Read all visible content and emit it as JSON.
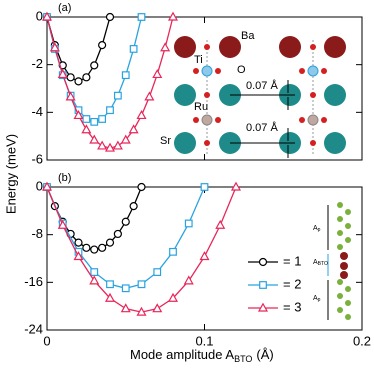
{
  "figure": {
    "ylabel": "Energy (meV)",
    "xlabel": [
      "Mode amplitude A",
      "BTO",
      "(Å)"
    ]
  },
  "chart_data": [
    {
      "type": "line",
      "panel_label": "(a)",
      "show_xticklabels": false,
      "xlim": [
        0,
        0.2
      ],
      "xticks": [
        0,
        0.1,
        0.2
      ],
      "ylim": [
        -6,
        0
      ],
      "yticks": [
        0,
        -2,
        -4,
        -6
      ],
      "series": [
        {
          "color": "#000000",
          "marker": "o",
          "x": [
            0,
            0.005,
            0.01,
            0.015,
            0.02,
            0.025,
            0.03,
            0.035,
            0.04
          ],
          "values": [
            0,
            -1.18,
            -2.03,
            -2.53,
            -2.7,
            -2.53,
            -2.03,
            -1.18,
            0
          ]
        },
        {
          "color": "#29a3e0",
          "marker": "s",
          "x": [
            0,
            0.005,
            0.01,
            0.015,
            0.02,
            0.025,
            0.03,
            0.035,
            0.04,
            0.045,
            0.05,
            0.055,
            0.06
          ],
          "values": [
            0,
            -1.34,
            -2.44,
            -3.3,
            -3.91,
            -4.28,
            -4.4,
            -4.28,
            -3.91,
            -3.3,
            -2.44,
            -1.34,
            0
          ]
        },
        {
          "color": "#e8265a",
          "marker": "^",
          "x": [
            0,
            0.005,
            0.01,
            0.015,
            0.02,
            0.025,
            0.03,
            0.035,
            0.04,
            0.045,
            0.05,
            0.055,
            0.06,
            0.065,
            0.07,
            0.075,
            0.08
          ],
          "values": [
            0,
            -1.29,
            -2.41,
            -3.35,
            -4.13,
            -4.73,
            -5.16,
            -5.41,
            -5.5,
            -5.41,
            -5.16,
            -4.73,
            -4.13,
            -3.35,
            -2.41,
            -1.29,
            0
          ]
        }
      ],
      "inset": {
        "labels": [
          "Ba",
          "Ti",
          "O",
          "Ru",
          "Sr",
          "0.07 Å",
          "0.07 Å"
        ]
      }
    },
    {
      "type": "line",
      "panel_label": "(b)",
      "show_xticklabels": true,
      "xlim": [
        0,
        0.2
      ],
      "xticks": [
        0,
        0.1,
        0.2
      ],
      "ylim": [
        -24,
        0
      ],
      "yticks": [
        0,
        -8,
        -16,
        -24
      ],
      "series": [
        {
          "name": "= 1",
          "color": "#000000",
          "marker": "o",
          "x": [
            0,
            0.005,
            0.01,
            0.015,
            0.02,
            0.025,
            0.03,
            0.035,
            0.04,
            0.045,
            0.05,
            0.055,
            0.06
          ],
          "values": [
            0,
            -3.21,
            -5.83,
            -7.88,
            -9.33,
            -10.21,
            -10.5,
            -10.21,
            -9.33,
            -7.88,
            -5.83,
            -3.21,
            0
          ]
        },
        {
          "name": "= 2",
          "color": "#29a3e0",
          "marker": "s",
          "x": [
            0,
            0.01,
            0.02,
            0.03,
            0.04,
            0.05,
            0.06,
            0.07,
            0.08,
            0.09,
            0.1
          ],
          "values": [
            0,
            -6.12,
            -10.88,
            -14.28,
            -16.32,
            -17,
            -16.32,
            -14.28,
            -10.88,
            -6.12,
            0
          ]
        },
        {
          "name": "= 3",
          "color": "#e8265a",
          "marker": "^",
          "x": [
            0,
            0.01,
            0.02,
            0.03,
            0.04,
            0.05,
            0.06,
            0.07,
            0.08,
            0.09,
            0.1,
            0.11,
            0.12
          ],
          "values": [
            0,
            -6.42,
            -11.67,
            -15.75,
            -18.67,
            -20.42,
            -21,
            -20.42,
            -18.67,
            -15.75,
            -11.67,
            -6.42,
            0
          ]
        }
      ],
      "inset": {
        "labels": [
          [
            "A",
            "p"
          ],
          [
            "A",
            "BTO"
          ],
          [
            "A",
            "p"
          ]
        ]
      }
    }
  ]
}
